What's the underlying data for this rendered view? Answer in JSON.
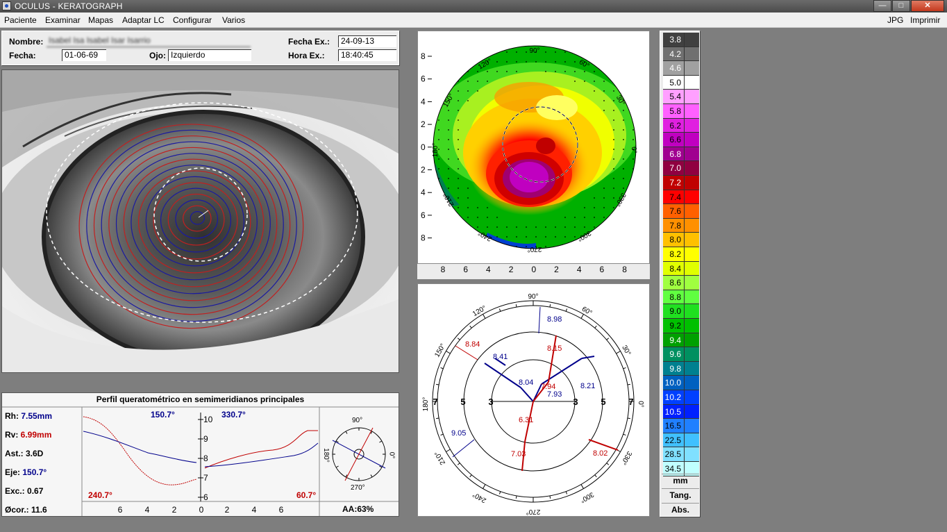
{
  "window": {
    "title": "OCULUS  -  KERATOGRAPH",
    "min_label": "—",
    "max_label": "□",
    "close_label": "✕"
  },
  "menu": {
    "items": [
      "Paciente",
      "Examinar",
      "Mapas",
      "Adaptar LC",
      "Configurar",
      "Varios"
    ],
    "right_items": [
      "JPG",
      "Imprimir"
    ]
  },
  "patient": {
    "name_label": "Nombre:",
    "name_value": "Isabel Isa Isabel Isar Isarrio",
    "date_label": "Fecha:",
    "date_value": "01-06-69",
    "eye_label": "Ojo:",
    "eye_value": "Izquierdo",
    "exam_date_label": "Fecha Ex.:",
    "exam_date_value": "24-09-13",
    "exam_time_label": "Hora Ex.:",
    "exam_time_value": "18:40:45"
  },
  "topo_map": {
    "angle_labels": [
      "90°",
      "60°",
      "30°",
      "0°",
      "330°",
      "300°",
      "270°",
      "240°",
      "210°",
      "180°",
      "150°",
      "120°"
    ],
    "y_ticks": [
      "8",
      "6",
      "4",
      "2",
      "0",
      "2",
      "4",
      "6",
      "8"
    ],
    "x_ticks": [
      "8",
      "6",
      "4",
      "2",
      "0",
      "2",
      "4",
      "6",
      "8"
    ]
  },
  "color_scale": {
    "values": [
      "3.8",
      "4.2",
      "4.6",
      "5.0",
      "5.4",
      "5.8",
      "6.2",
      "6.6",
      "6.8",
      "7.0",
      "7.2",
      "7.4",
      "7.6",
      "7.8",
      "8.0",
      "8.2",
      "8.4",
      "8.6",
      "8.8",
      "9.0",
      "9.2",
      "9.4",
      "9.6",
      "9.8",
      "10.0",
      "10.2",
      "10.5",
      "16.5",
      "22.5",
      "28.5",
      "34.5"
    ],
    "colors": [
      "#404040",
      "#707070",
      "#a0a0a0",
      "#ffffff",
      "#ffa0ff",
      "#ff60ff",
      "#e020e0",
      "#c000c0",
      "#a00090",
      "#900040",
      "#c00000",
      "#ff0000",
      "#ff6000",
      "#ff9000",
      "#ffc000",
      "#ffff00",
      "#e0ff00",
      "#a0ff40",
      "#60ff40",
      "#20e020",
      "#00c000",
      "#00a000",
      "#009060",
      "#008090",
      "#0060c0",
      "#0040ff",
      "#0020ff",
      "#2080ff",
      "#40c0ff",
      "#80e0ff",
      "#c0ffff"
    ],
    "units": [
      "mm",
      "Tang.",
      "Abs."
    ]
  },
  "profile": {
    "title": "Perfil queratométrico en semimeridianos principales",
    "stats": [
      {
        "label": "Rh:",
        "value": "7.55mm",
        "color": "#00008b"
      },
      {
        "label": "Rv:",
        "value": "6.99mm",
        "color": "#c00000"
      },
      {
        "label": "Ast.:",
        "value": "3.6D",
        "color": "#000000"
      },
      {
        "label": "Eje:",
        "value": "150.7°",
        "color": "#00008b"
      },
      {
        "label": "Exc.:",
        "value": "0.67",
        "color": "#000000"
      },
      {
        "label": "Øcor.:",
        "value": "11.6",
        "color": "#000000"
      }
    ],
    "axis_label_tl": "150.7°",
    "axis_label_tr": "330.7°",
    "axis_label_bl": "240.7°",
    "axis_label_br": "60.7°",
    "y_ticks": [
      "10",
      "9",
      "8",
      "7",
      "6"
    ],
    "x_ticks_left": [
      "6",
      "4",
      "2",
      "0"
    ],
    "x_ticks_right": [
      "2",
      "4",
      "6"
    ],
    "mini_labels": [
      "90°",
      "0°",
      "270°",
      "180°"
    ],
    "aa_label": "AA:63%"
  },
  "polar": {
    "angle_labels": [
      "90°",
      "60°",
      "30°",
      "0°",
      "330°",
      "300°",
      "270°",
      "240°",
      "210°",
      "180°",
      "150°",
      "120°"
    ],
    "radius_labels": [
      "7",
      "5",
      "3",
      "3",
      "5",
      "7"
    ],
    "values": [
      {
        "text": "8.98",
        "color": "#00008b"
      },
      {
        "text": "8.84",
        "color": "#c00000"
      },
      {
        "text": "8.15",
        "color": "#c00000"
      },
      {
        "text": "8.41",
        "color": "#00008b"
      },
      {
        "text": "8.04",
        "color": "#00008b"
      },
      {
        "text": "7.94",
        "color": "#c00000"
      },
      {
        "text": "7.93",
        "color": "#00008b"
      },
      {
        "text": "8.21",
        "color": "#00008b"
      },
      {
        "text": "9.05",
        "color": "#00008b"
      },
      {
        "text": "6.31",
        "color": "#c00000"
      },
      {
        "text": "7.03",
        "color": "#c00000"
      },
      {
        "text": "8.02",
        "color": "#c00000"
      }
    ]
  }
}
